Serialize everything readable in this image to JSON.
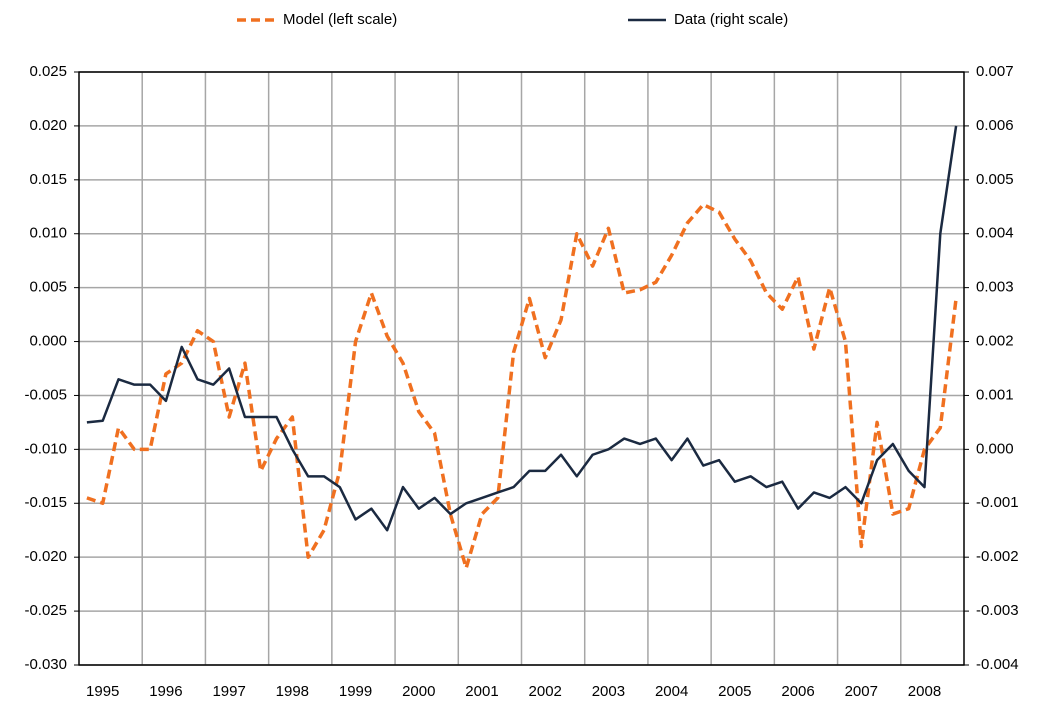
{
  "chart_data": {
    "type": "line",
    "categories": [
      null,
      "1995",
      null,
      null,
      null,
      "1996",
      null,
      null,
      null,
      "1997",
      null,
      null,
      null,
      "1998",
      null,
      null,
      null,
      "1999",
      null,
      null,
      null,
      "2000",
      null,
      null,
      null,
      "2001",
      null,
      null,
      null,
      "2002",
      null,
      null,
      null,
      "2003",
      null,
      null,
      null,
      "2004",
      null,
      null,
      null,
      "2005",
      null,
      null,
      null,
      "2006",
      null,
      null,
      null,
      "2007",
      null,
      null,
      null,
      "2008",
      null,
      null
    ],
    "series": [
      {
        "name": "Model (left scale)",
        "color": "#f07020",
        "dashed": true,
        "axis": "y",
        "values": [
          -0.0145,
          -0.015,
          -0.008,
          -0.01,
          -0.01,
          -0.003,
          -0.002,
          0.001,
          0.0,
          -0.007,
          -0.002,
          -0.012,
          -0.009,
          -0.007,
          -0.02,
          -0.0175,
          -0.012,
          0.0,
          0.0045,
          0.0005,
          -0.002,
          -0.0065,
          -0.0085,
          -0.016,
          -0.021,
          -0.016,
          -0.0145,
          -0.001,
          0.004,
          -0.0015,
          0.002,
          0.01,
          0.007,
          0.0105,
          0.0045,
          0.0048,
          0.0055,
          0.008,
          0.011,
          0.0127,
          0.012,
          0.0095,
          0.0075,
          0.0045,
          0.003,
          0.006,
          -0.0007,
          0.005,
          0.0,
          -0.019,
          -0.0075,
          -0.016,
          -0.0155,
          -0.01,
          -0.008,
          0.004
        ]
      },
      {
        "name": "Data (right scale)",
        "color": "#1b2a41",
        "dashed": false,
        "axis": "y2",
        "values": [
          0.0005,
          0.00053,
          0.0013,
          0.0012,
          0.0012,
          0.0009,
          0.0019,
          0.0013,
          0.0012,
          0.0015,
          0.0006,
          0.0006,
          0.0006,
          0.0,
          -0.0005,
          -0.0005,
          -0.0007,
          -0.0013,
          -0.0011,
          -0.0015,
          -0.0007,
          -0.0011,
          -0.0009,
          -0.0012,
          -0.001,
          -0.0009,
          -0.0008,
          -0.0007,
          -0.0004,
          -0.0004,
          -0.0001,
          -0.0005,
          -0.0001,
          0.0,
          0.0002,
          0.0001,
          0.0002,
          -0.0002,
          0.0002,
          -0.0003,
          -0.0002,
          -0.0006,
          -0.0005,
          -0.0007,
          -0.0006,
          -0.0011,
          -0.0008,
          -0.0009,
          -0.0007,
          -0.001,
          -0.0002,
          0.0001,
          -0.0004,
          -0.0007,
          0.004,
          0.006
        ]
      }
    ],
    "ylim": [
      -0.03,
      0.025
    ],
    "yticks": [
      {
        "value": -0.03,
        "label": "-0.030"
      },
      {
        "value": -0.025,
        "label": "-0.025"
      },
      {
        "value": -0.02,
        "label": "-0.020"
      },
      {
        "value": -0.015,
        "label": "-0.015"
      },
      {
        "value": -0.01,
        "label": "-0.010"
      },
      {
        "value": -0.005,
        "label": "-0.005"
      },
      {
        "value": 0,
        "label": "0.000"
      },
      {
        "value": 0.005,
        "label": "0.005"
      },
      {
        "value": 0.01,
        "label": "0.010"
      },
      {
        "value": 0.015,
        "label": "0.015"
      },
      {
        "value": 0.02,
        "label": "0.020"
      },
      {
        "value": 0.025,
        "label": "0.025"
      }
    ],
    "y2lim": [
      -0.004,
      0.007
    ],
    "y2ticks": [
      {
        "value": -0.004,
        "label": "-0.004"
      },
      {
        "value": -0.003,
        "label": "-0.003"
      },
      {
        "value": -0.002,
        "label": "-0.002"
      },
      {
        "value": -0.001,
        "label": "-0.001"
      },
      {
        "value": 0,
        "label": "0.000"
      },
      {
        "value": 0.001,
        "label": "0.001"
      },
      {
        "value": 0.002,
        "label": "0.002"
      },
      {
        "value": 0.003,
        "label": "0.003"
      },
      {
        "value": 0.004,
        "label": "0.004"
      },
      {
        "value": 0.005,
        "label": "0.005"
      },
      {
        "value": 0.006,
        "label": "0.006"
      },
      {
        "value": 0.007,
        "label": "0.007"
      }
    ],
    "grid": true,
    "legend": "top"
  }
}
